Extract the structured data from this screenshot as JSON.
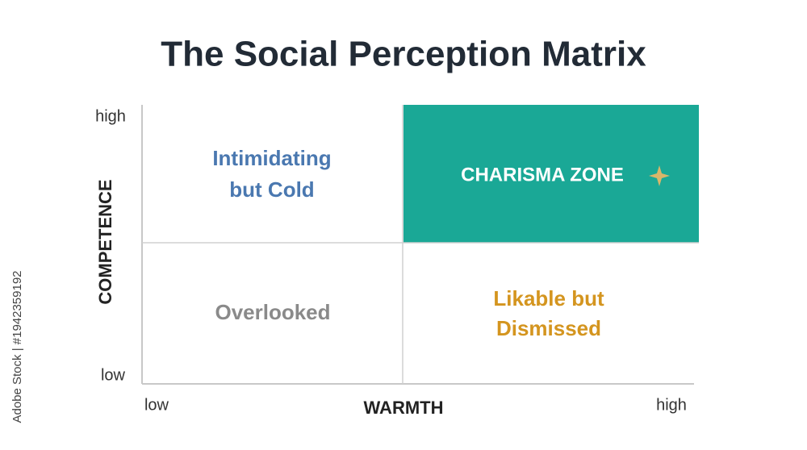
{
  "title": "The Social Perception Matrix",
  "y_axis": {
    "label": "COMPETENCE",
    "high": "high",
    "low": "low"
  },
  "x_axis": {
    "label": "WARMTH",
    "low": "low",
    "high": "high"
  },
  "quadrants": {
    "top_left": {
      "lines": [
        "Intimidating",
        "but Cold"
      ]
    },
    "top_right": {
      "lines": [
        "CHARISMA ZONE"
      ]
    },
    "bottom_left": {
      "lines": [
        "Overlooked"
      ]
    },
    "bottom_right": {
      "lines": [
        "Likable but",
        "Dismissed"
      ]
    }
  },
  "watermark": "Adobe Stock | #1942359192"
}
